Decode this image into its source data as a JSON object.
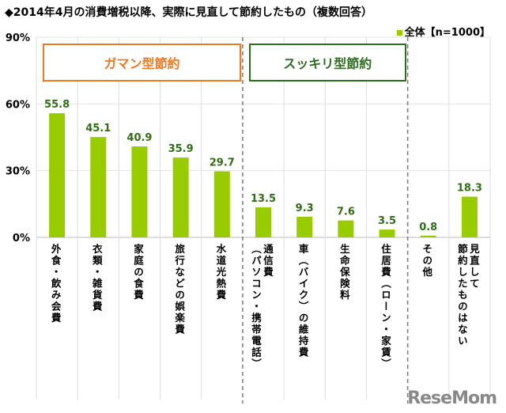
{
  "chart_data": {
    "type": "bar",
    "title": "◆2014年4月の消費増税以降、実際に見直して節約したもの（複数回答）",
    "categories": [
      "外食・飲み会費",
      "衣類・雑貨費",
      "家庭の食費",
      "旅行などの娯楽費",
      "水道光熱費",
      "通信費\n（パソコン・携帯電話）",
      "車（バイク）の維持費",
      "生命保険料",
      "住居費（ローン・家賃）",
      "その他",
      "見直して\n節約したものはない"
    ],
    "series": [
      {
        "name": "全体【n=1000】",
        "values": [
          55.8,
          45.1,
          40.9,
          35.9,
          29.7,
          13.5,
          9.3,
          7.6,
          3.5,
          0.8,
          18.3
        ],
        "color": "#99cc00"
      }
    ],
    "value_labels": [
      "55.8",
      "45.1",
      "40.9",
      "35.9",
      "29.7",
      "13.5",
      "9.3",
      "7.6",
      "3.5",
      "0.8",
      "18.3"
    ],
    "ylim": [
      0,
      90
    ],
    "yticks": [
      "0%",
      "30%",
      "60%",
      "90%"
    ],
    "ytick_values": [
      0,
      30,
      60,
      90
    ],
    "legend": "top-right",
    "groups": [
      {
        "label": "ガマン型節約",
        "color": "#f07820",
        "from": 0,
        "to": 4
      },
      {
        "label": "スッキリ型節約",
        "color": "#2d6e1e",
        "from": 5,
        "to": 8
      }
    ]
  },
  "logo": "ReseMom"
}
